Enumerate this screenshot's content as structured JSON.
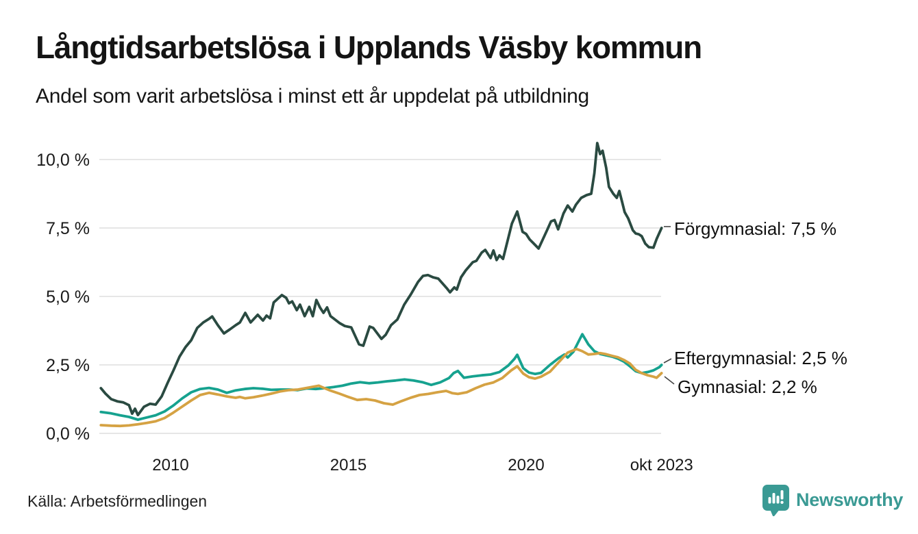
{
  "header": {
    "title": "Långtidsarbetslösa i Upplands Väsby kommun",
    "subtitle": "Andel som varit arbetslösa i minst ett år uppdelat på utbildning"
  },
  "footer": {
    "source": "Källa: Arbetsförmedlingen",
    "brand": "Newsworthy"
  },
  "colors": {
    "forgymnasial": "#2a4a41",
    "eftergymnasial": "#16a28f",
    "gymnasial": "#d5a243",
    "grid": "#e6e6e6",
    "connector": "#444444",
    "text": "#1a1a1a",
    "brand_teal": "#3a9a94"
  },
  "chart_data": {
    "type": "line",
    "title": "Långtidsarbetslösa i Upplands Väsby kommun",
    "subtitle": "Andel som varit arbetslösa i minst ett år uppdelat på utbildning",
    "unit": "%",
    "grid": "horizontal-only",
    "legend_position": "end-of-line-labels",
    "x_range": [
      2008.0,
      2023.81
    ],
    "ylim": [
      0,
      10.8
    ],
    "y_ticks": [
      {
        "value": 0,
        "label": "0,0 %"
      },
      {
        "value": 2.5,
        "label": "2,5 %"
      },
      {
        "value": 5,
        "label": "5,0 %"
      },
      {
        "value": 7.5,
        "label": "7,5 %"
      },
      {
        "value": 10,
        "label": "10,0 %"
      }
    ],
    "x_ticks": [
      {
        "year": 2010,
        "label": "2010"
      },
      {
        "year": 2015,
        "label": "2015"
      },
      {
        "year": 2020,
        "label": "2020"
      },
      {
        "year": 2023.81,
        "label": "okt 2023"
      }
    ],
    "series": [
      {
        "name": "Förgymnasial",
        "end_label": "Förgymnasial: 7,5 %",
        "end_value": "7,5 %",
        "color": "#2a4a41",
        "points": [
          [
            2008.04,
            1.65
          ],
          [
            2008.17,
            1.45
          ],
          [
            2008.33,
            1.25
          ],
          [
            2008.5,
            1.17
          ],
          [
            2008.67,
            1.13
          ],
          [
            2008.83,
            1.03
          ],
          [
            2008.92,
            0.72
          ],
          [
            2009.0,
            0.9
          ],
          [
            2009.08,
            0.67
          ],
          [
            2009.25,
            0.97
          ],
          [
            2009.42,
            1.08
          ],
          [
            2009.58,
            1.05
          ],
          [
            2009.75,
            1.35
          ],
          [
            2009.92,
            1.85
          ],
          [
            2010.08,
            2.3
          ],
          [
            2010.25,
            2.8
          ],
          [
            2010.42,
            3.15
          ],
          [
            2010.58,
            3.4
          ],
          [
            2010.75,
            3.85
          ],
          [
            2010.92,
            4.05
          ],
          [
            2011.08,
            4.18
          ],
          [
            2011.17,
            4.27
          ],
          [
            2011.33,
            3.95
          ],
          [
            2011.5,
            3.65
          ],
          [
            2011.67,
            3.8
          ],
          [
            2011.83,
            3.95
          ],
          [
            2011.95,
            4.05
          ],
          [
            2012.1,
            4.4
          ],
          [
            2012.25,
            4.05
          ],
          [
            2012.45,
            4.33
          ],
          [
            2012.6,
            4.12
          ],
          [
            2012.7,
            4.3
          ],
          [
            2012.8,
            4.2
          ],
          [
            2012.9,
            4.78
          ],
          [
            2013.13,
            5.05
          ],
          [
            2013.25,
            4.95
          ],
          [
            2013.33,
            4.75
          ],
          [
            2013.42,
            4.82
          ],
          [
            2013.55,
            4.5
          ],
          [
            2013.64,
            4.7
          ],
          [
            2013.77,
            4.28
          ],
          [
            2013.9,
            4.62
          ],
          [
            2014.0,
            4.28
          ],
          [
            2014.1,
            4.87
          ],
          [
            2014.2,
            4.6
          ],
          [
            2014.3,
            4.4
          ],
          [
            2014.4,
            4.6
          ],
          [
            2014.5,
            4.28
          ],
          [
            2014.6,
            4.18
          ],
          [
            2014.75,
            4.03
          ],
          [
            2014.9,
            3.92
          ],
          [
            2015.08,
            3.87
          ],
          [
            2015.3,
            3.25
          ],
          [
            2015.42,
            3.2
          ],
          [
            2015.6,
            3.9
          ],
          [
            2015.7,
            3.85
          ],
          [
            2015.93,
            3.45
          ],
          [
            2016.05,
            3.6
          ],
          [
            2016.2,
            3.95
          ],
          [
            2016.38,
            4.16
          ],
          [
            2016.57,
            4.7
          ],
          [
            2016.76,
            5.08
          ],
          [
            2016.96,
            5.53
          ],
          [
            2017.1,
            5.75
          ],
          [
            2017.24,
            5.78
          ],
          [
            2017.38,
            5.7
          ],
          [
            2017.53,
            5.65
          ],
          [
            2017.78,
            5.28
          ],
          [
            2017.86,
            5.15
          ],
          [
            2017.98,
            5.33
          ],
          [
            2018.05,
            5.25
          ],
          [
            2018.17,
            5.7
          ],
          [
            2018.3,
            5.95
          ],
          [
            2018.5,
            6.25
          ],
          [
            2018.6,
            6.3
          ],
          [
            2018.75,
            6.6
          ],
          [
            2018.85,
            6.7
          ],
          [
            2019.0,
            6.4
          ],
          [
            2019.08,
            6.68
          ],
          [
            2019.17,
            6.33
          ],
          [
            2019.25,
            6.5
          ],
          [
            2019.35,
            6.37
          ],
          [
            2019.6,
            7.66
          ],
          [
            2019.75,
            8.1
          ],
          [
            2019.9,
            7.36
          ],
          [
            2020.0,
            7.28
          ],
          [
            2020.1,
            7.08
          ],
          [
            2020.2,
            6.95
          ],
          [
            2020.35,
            6.75
          ],
          [
            2020.6,
            7.45
          ],
          [
            2020.7,
            7.74
          ],
          [
            2020.8,
            7.79
          ],
          [
            2020.9,
            7.45
          ],
          [
            2021.05,
            8.03
          ],
          [
            2021.17,
            8.32
          ],
          [
            2021.3,
            8.1
          ],
          [
            2021.4,
            8.35
          ],
          [
            2021.55,
            8.6
          ],
          [
            2021.7,
            8.7
          ],
          [
            2021.83,
            8.75
          ],
          [
            2021.92,
            9.5
          ],
          [
            2022.0,
            10.6
          ],
          [
            2022.08,
            10.2
          ],
          [
            2022.15,
            10.32
          ],
          [
            2022.25,
            9.7
          ],
          [
            2022.33,
            9.0
          ],
          [
            2022.45,
            8.75
          ],
          [
            2022.55,
            8.6
          ],
          [
            2022.62,
            8.85
          ],
          [
            2022.7,
            8.45
          ],
          [
            2022.77,
            8.08
          ],
          [
            2022.87,
            7.85
          ],
          [
            2023.0,
            7.42
          ],
          [
            2023.08,
            7.3
          ],
          [
            2023.17,
            7.27
          ],
          [
            2023.25,
            7.2
          ],
          [
            2023.35,
            6.93
          ],
          [
            2023.45,
            6.8
          ],
          [
            2023.58,
            6.78
          ],
          [
            2023.67,
            7.1
          ],
          [
            2023.81,
            7.5
          ]
        ]
      },
      {
        "name": "Eftergymnasial",
        "end_label": "Eftergymnasial: 2,5 %",
        "end_value": "2,5 %",
        "color": "#16a28f",
        "points": [
          [
            2008.04,
            0.78
          ],
          [
            2008.33,
            0.73
          ],
          [
            2008.58,
            0.66
          ],
          [
            2008.83,
            0.6
          ],
          [
            2009.08,
            0.5
          ],
          [
            2009.33,
            0.58
          ],
          [
            2009.58,
            0.66
          ],
          [
            2009.83,
            0.8
          ],
          [
            2010.08,
            1.02
          ],
          [
            2010.33,
            1.28
          ],
          [
            2010.58,
            1.5
          ],
          [
            2010.83,
            1.62
          ],
          [
            2011.08,
            1.66
          ],
          [
            2011.33,
            1.6
          ],
          [
            2011.58,
            1.48
          ],
          [
            2011.83,
            1.57
          ],
          [
            2012.08,
            1.62
          ],
          [
            2012.33,
            1.65
          ],
          [
            2012.58,
            1.63
          ],
          [
            2012.83,
            1.59
          ],
          [
            2013.08,
            1.6
          ],
          [
            2013.33,
            1.6
          ],
          [
            2013.58,
            1.58
          ],
          [
            2013.83,
            1.64
          ],
          [
            2014.08,
            1.62
          ],
          [
            2014.33,
            1.65
          ],
          [
            2014.58,
            1.69
          ],
          [
            2014.83,
            1.74
          ],
          [
            2015.08,
            1.82
          ],
          [
            2015.33,
            1.87
          ],
          [
            2015.58,
            1.83
          ],
          [
            2015.83,
            1.86
          ],
          [
            2016.08,
            1.9
          ],
          [
            2016.33,
            1.93
          ],
          [
            2016.58,
            1.97
          ],
          [
            2016.83,
            1.93
          ],
          [
            2017.08,
            1.87
          ],
          [
            2017.33,
            1.77
          ],
          [
            2017.58,
            1.86
          ],
          [
            2017.83,
            2.02
          ],
          [
            2017.96,
            2.2
          ],
          [
            2018.08,
            2.28
          ],
          [
            2018.25,
            2.03
          ],
          [
            2018.5,
            2.08
          ],
          [
            2018.75,
            2.12
          ],
          [
            2019.0,
            2.15
          ],
          [
            2019.25,
            2.24
          ],
          [
            2019.5,
            2.48
          ],
          [
            2019.67,
            2.72
          ],
          [
            2019.75,
            2.87
          ],
          [
            2019.92,
            2.38
          ],
          [
            2020.08,
            2.22
          ],
          [
            2020.25,
            2.17
          ],
          [
            2020.42,
            2.21
          ],
          [
            2020.67,
            2.5
          ],
          [
            2020.92,
            2.75
          ],
          [
            2021.08,
            2.88
          ],
          [
            2021.17,
            2.77
          ],
          [
            2021.33,
            2.98
          ],
          [
            2021.5,
            3.42
          ],
          [
            2021.58,
            3.62
          ],
          [
            2021.75,
            3.25
          ],
          [
            2021.92,
            3.0
          ],
          [
            2022.08,
            2.9
          ],
          [
            2022.25,
            2.85
          ],
          [
            2022.42,
            2.8
          ],
          [
            2022.58,
            2.73
          ],
          [
            2022.75,
            2.62
          ],
          [
            2022.92,
            2.45
          ],
          [
            2023.08,
            2.27
          ],
          [
            2023.25,
            2.2
          ],
          [
            2023.42,
            2.24
          ],
          [
            2023.58,
            2.3
          ],
          [
            2023.75,
            2.42
          ],
          [
            2023.81,
            2.5
          ]
        ]
      },
      {
        "name": "Gymnasial",
        "end_label": "Gymnasial: 2,2 %",
        "end_value": "2,2 %",
        "color": "#d5a243",
        "points": [
          [
            2008.04,
            0.3
          ],
          [
            2008.33,
            0.28
          ],
          [
            2008.58,
            0.27
          ],
          [
            2008.83,
            0.29
          ],
          [
            2009.08,
            0.33
          ],
          [
            2009.33,
            0.38
          ],
          [
            2009.58,
            0.44
          ],
          [
            2009.83,
            0.56
          ],
          [
            2010.08,
            0.76
          ],
          [
            2010.33,
            0.98
          ],
          [
            2010.58,
            1.2
          ],
          [
            2010.83,
            1.4
          ],
          [
            2011.08,
            1.48
          ],
          [
            2011.33,
            1.42
          ],
          [
            2011.58,
            1.35
          ],
          [
            2011.83,
            1.3
          ],
          [
            2011.95,
            1.33
          ],
          [
            2012.1,
            1.28
          ],
          [
            2012.33,
            1.32
          ],
          [
            2012.58,
            1.38
          ],
          [
            2012.83,
            1.45
          ],
          [
            2013.08,
            1.53
          ],
          [
            2013.33,
            1.58
          ],
          [
            2013.58,
            1.6
          ],
          [
            2013.83,
            1.66
          ],
          [
            2014.17,
            1.74
          ],
          [
            2014.33,
            1.65
          ],
          [
            2014.5,
            1.56
          ],
          [
            2014.75,
            1.45
          ],
          [
            2015.0,
            1.33
          ],
          [
            2015.25,
            1.22
          ],
          [
            2015.5,
            1.25
          ],
          [
            2015.75,
            1.2
          ],
          [
            2016.0,
            1.1
          ],
          [
            2016.25,
            1.05
          ],
          [
            2016.5,
            1.18
          ],
          [
            2016.75,
            1.3
          ],
          [
            2017.0,
            1.4
          ],
          [
            2017.25,
            1.44
          ],
          [
            2017.5,
            1.5
          ],
          [
            2017.75,
            1.55
          ],
          [
            2017.92,
            1.47
          ],
          [
            2018.08,
            1.44
          ],
          [
            2018.33,
            1.5
          ],
          [
            2018.58,
            1.65
          ],
          [
            2018.83,
            1.78
          ],
          [
            2019.08,
            1.86
          ],
          [
            2019.33,
            2.02
          ],
          [
            2019.58,
            2.3
          ],
          [
            2019.75,
            2.45
          ],
          [
            2019.92,
            2.18
          ],
          [
            2020.08,
            2.05
          ],
          [
            2020.25,
            2.0
          ],
          [
            2020.42,
            2.07
          ],
          [
            2020.67,
            2.25
          ],
          [
            2020.92,
            2.6
          ],
          [
            2021.17,
            2.95
          ],
          [
            2021.42,
            3.08
          ],
          [
            2021.58,
            3.0
          ],
          [
            2021.75,
            2.88
          ],
          [
            2021.92,
            2.9
          ],
          [
            2022.08,
            2.93
          ],
          [
            2022.25,
            2.89
          ],
          [
            2022.42,
            2.83
          ],
          [
            2022.58,
            2.78
          ],
          [
            2022.75,
            2.68
          ],
          [
            2022.92,
            2.55
          ],
          [
            2023.08,
            2.32
          ],
          [
            2023.25,
            2.2
          ],
          [
            2023.42,
            2.12
          ],
          [
            2023.58,
            2.07
          ],
          [
            2023.67,
            2.03
          ],
          [
            2023.81,
            2.2
          ]
        ]
      }
    ]
  }
}
